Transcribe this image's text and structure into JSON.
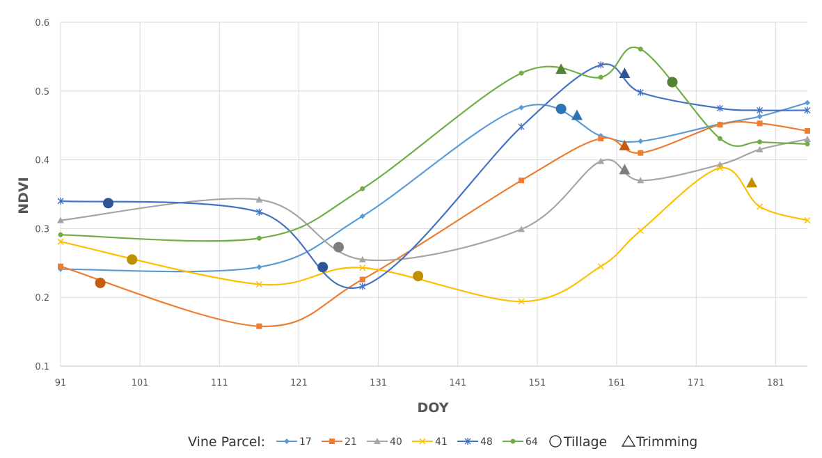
{
  "chart_data": {
    "type": "line",
    "title": "",
    "xlabel": "DOY",
    "ylabel": "NDVI",
    "xlim": [
      91,
      185
    ],
    "ylim": [
      0.1,
      0.6
    ],
    "x_ticks": [
      "91",
      "101",
      "111",
      "121",
      "131",
      "141",
      "151",
      "161",
      "171",
      "181"
    ],
    "y_ticks": [
      "0.1",
      "0.2",
      "0.3",
      "0.4",
      "0.5",
      "0.6"
    ],
    "grid": true,
    "series": [
      {
        "name": "17",
        "color": "#5b9bd5",
        "marker": "diamond",
        "x": [
          91,
          116,
          129,
          149,
          159,
          164,
          174,
          179,
          185
        ],
        "y": [
          0.241,
          0.244,
          0.318,
          0.476,
          0.435,
          0.427,
          0.452,
          0.463,
          0.483
        ]
      },
      {
        "name": "21",
        "color": "#ed7d31",
        "marker": "square",
        "x": [
          91,
          116,
          129,
          149,
          159,
          164,
          174,
          179,
          185
        ],
        "y": [
          0.245,
          0.158,
          0.226,
          0.37,
          0.431,
          0.41,
          0.451,
          0.453,
          0.442
        ]
      },
      {
        "name": "40",
        "color": "#a5a5a5",
        "marker": "triangle",
        "x": [
          91,
          116,
          129,
          149,
          159,
          164,
          174,
          179,
          185
        ],
        "y": [
          0.312,
          0.342,
          0.255,
          0.299,
          0.398,
          0.37,
          0.393,
          0.415,
          0.43
        ]
      },
      {
        "name": "41",
        "color": "#ffc000",
        "marker": "x",
        "x": [
          91,
          116,
          129,
          149,
          159,
          164,
          174,
          179,
          185
        ],
        "y": [
          0.281,
          0.219,
          0.243,
          0.194,
          0.245,
          0.297,
          0.388,
          0.332,
          0.312
        ]
      },
      {
        "name": "48",
        "color": "#4472c4",
        "marker": "star",
        "x": [
          91,
          116,
          129,
          149,
          159,
          164,
          174,
          179,
          185
        ],
        "y": [
          0.34,
          0.324,
          0.216,
          0.448,
          0.538,
          0.498,
          0.475,
          0.472,
          0.472
        ]
      },
      {
        "name": "64",
        "color": "#70ad47",
        "marker": "circle",
        "x": [
          91,
          116,
          129,
          149,
          159,
          164,
          174,
          179,
          185
        ],
        "y": [
          0.291,
          0.286,
          0.358,
          0.526,
          0.52,
          0.561,
          0.431,
          0.426,
          0.423
        ]
      }
    ],
    "events": [
      {
        "series": "17",
        "type": "Tillage",
        "x": 154,
        "y": 0.474,
        "color": "#2e75b6"
      },
      {
        "series": "17",
        "type": "Trimming",
        "x": 156,
        "y": 0.465,
        "color": "#2e75b6"
      },
      {
        "series": "21",
        "type": "Tillage",
        "x": 96,
        "y": 0.221,
        "color": "#c55a11"
      },
      {
        "series": "21",
        "type": "Trimming",
        "x": 162,
        "y": 0.421,
        "color": "#c55a11"
      },
      {
        "series": "40",
        "type": "Tillage",
        "x": 126,
        "y": 0.273,
        "color": "#7f7f7f"
      },
      {
        "series": "40",
        "type": "Trimming",
        "x": 162,
        "y": 0.386,
        "color": "#7f7f7f"
      },
      {
        "series": "41",
        "type": "Tillage",
        "x": 100,
        "y": 0.255,
        "color": "#bf9000"
      },
      {
        "series": "41",
        "type": "Tillage",
        "x": 136,
        "y": 0.231,
        "color": "#bf9000"
      },
      {
        "series": "41",
        "type": "Trimming",
        "x": 178,
        "y": 0.367,
        "color": "#bf9000"
      },
      {
        "series": "48",
        "type": "Tillage",
        "x": 97,
        "y": 0.337,
        "color": "#2f5597"
      },
      {
        "series": "48",
        "type": "Tillage",
        "x": 124,
        "y": 0.244,
        "color": "#2f5597"
      },
      {
        "series": "48",
        "type": "Trimming",
        "x": 162,
        "y": 0.526,
        "color": "#2f5597"
      },
      {
        "series": "64",
        "type": "Trimming",
        "x": 154,
        "y": 0.532,
        "color": "#548235"
      },
      {
        "series": "64",
        "type": "Tillage",
        "x": 168,
        "y": 0.513,
        "color": "#548235"
      }
    ],
    "legend": {
      "title": "Vine Parcel:",
      "tillage_label": "Tillage",
      "trimming_label": "Trimming",
      "position": "bottom"
    }
  }
}
